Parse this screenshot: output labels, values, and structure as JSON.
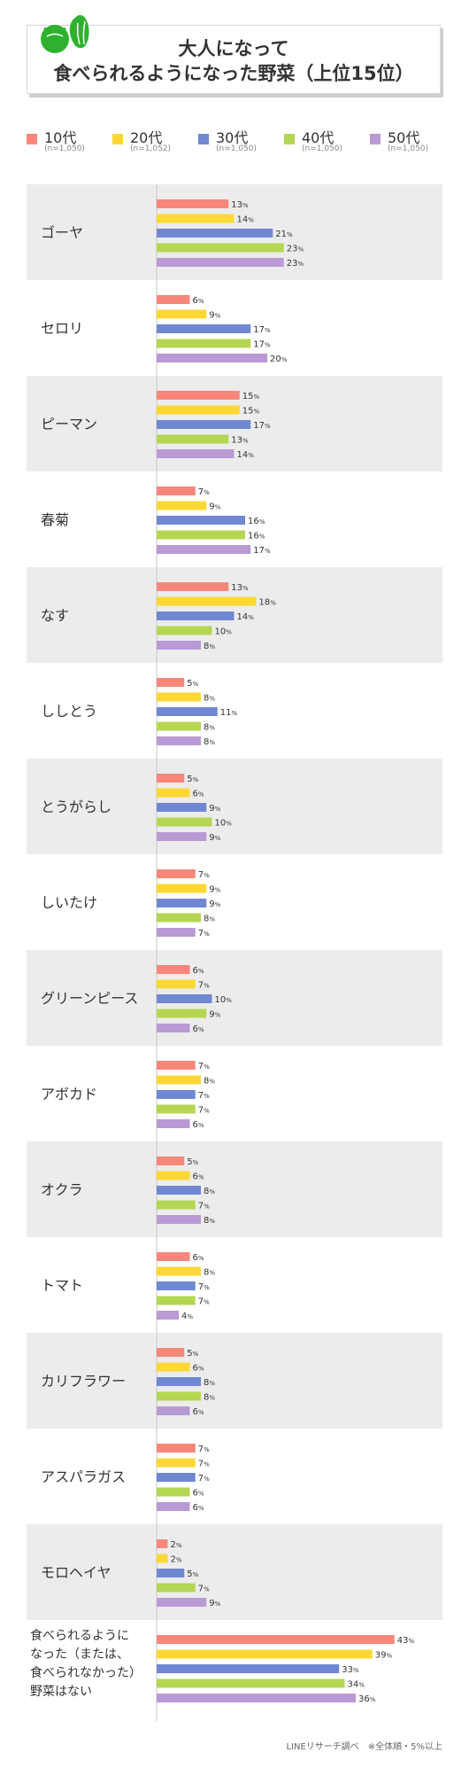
{
  "title": {
    "line1": "大人になって",
    "line2": "食べられるようになった野菜（上位15位）"
  },
  "legend": [
    {
      "name": "10代",
      "n": "(n=1,050)",
      "color": "#f7877a"
    },
    {
      "name": "20代",
      "n": "(n=1,052)",
      "color": "#fdd835"
    },
    {
      "name": "30代",
      "n": "(n=1,050)",
      "color": "#6f88d1"
    },
    {
      "name": "40代",
      "n": "(n=1,050)",
      "color": "#b5d653"
    },
    {
      "name": "50代",
      "n": "(n=1,050)",
      "color": "#b99ad4"
    }
  ],
  "footnote": "LINEリサーチ調べ　※全体順・5%以上",
  "chart_data": {
    "type": "bar",
    "orientation": "horizontal",
    "unit": "%",
    "categories": [
      "ゴーヤ",
      "セロリ",
      "ピーマン",
      "春菊",
      "なす",
      "ししとう",
      "とうがらし",
      "しいたけ",
      "グリーンピース",
      "アボカド",
      "オクラ",
      "トマト",
      "カリフラワー",
      "アスパラガス",
      "モロヘイヤ",
      "食べられるようになった（または、食べられなかった）野菜はない"
    ],
    "series": [
      {
        "name": "10代",
        "values": [
          13,
          6,
          15,
          7,
          13,
          5,
          5,
          7,
          6,
          7,
          5,
          6,
          5,
          7,
          2,
          43
        ]
      },
      {
        "name": "20代",
        "values": [
          14,
          9,
          15,
          9,
          18,
          8,
          6,
          9,
          7,
          8,
          6,
          8,
          6,
          7,
          2,
          39
        ]
      },
      {
        "name": "30代",
        "values": [
          21,
          17,
          17,
          16,
          14,
          11,
          9,
          9,
          10,
          7,
          8,
          7,
          8,
          7,
          5,
          33
        ]
      },
      {
        "name": "40代",
        "values": [
          23,
          17,
          13,
          16,
          10,
          8,
          10,
          8,
          9,
          7,
          7,
          7,
          8,
          6,
          7,
          34
        ]
      },
      {
        "name": "50代",
        "values": [
          23,
          20,
          14,
          17,
          8,
          8,
          9,
          7,
          6,
          6,
          8,
          4,
          6,
          6,
          9,
          36
        ]
      }
    ],
    "colors": [
      "#f7877a",
      "#fdd835",
      "#6f88d1",
      "#b5d653",
      "#b99ad4"
    ],
    "xlim": [
      0,
      45
    ],
    "legend_position": "top"
  }
}
